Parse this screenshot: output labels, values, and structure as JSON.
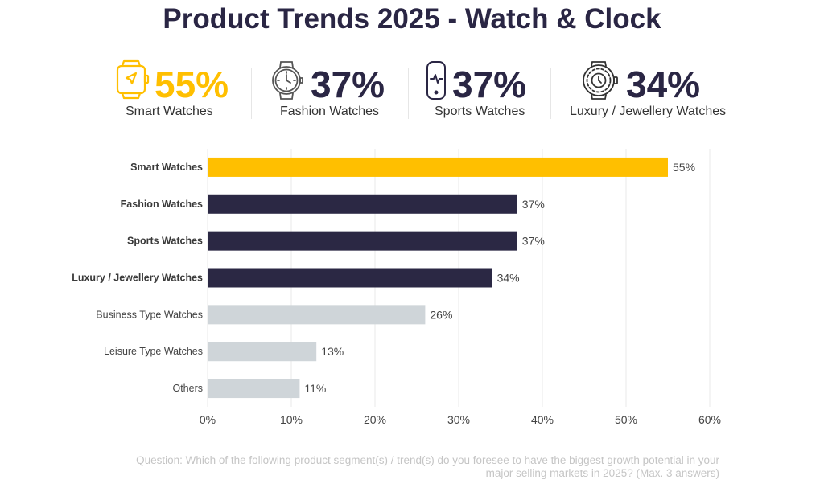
{
  "title": "Product Trends 2025 - Watch & Clock",
  "colors": {
    "highlight": "#ffbf00",
    "dark": "#2b2844",
    "muted": "#cfd5d9",
    "grid": "#e9e9e9",
    "label_text": "#444444"
  },
  "kpis": [
    {
      "value": "55%",
      "label": "Smart Watches",
      "icon": "smartwatch-icon",
      "color": "#ffbf00"
    },
    {
      "value": "37%",
      "label": "Fashion Watches",
      "icon": "analog-watch-icon",
      "color": "#2a2644"
    },
    {
      "value": "37%",
      "label": "Sports Watches",
      "icon": "fitness-band-icon",
      "color": "#2a2644"
    },
    {
      "value": "34%",
      "label": "Luxury / Jewellery Watches",
      "icon": "luxury-watch-icon",
      "color": "#2a2644"
    }
  ],
  "chart_data": {
    "type": "bar",
    "orientation": "horizontal",
    "title": "",
    "xlabel": "",
    "ylabel": "",
    "categories": [
      "Smart Watches",
      "Fashion Watches",
      "Sports Watches",
      "Luxury / Jewellery Watches",
      "Business Type Watches",
      "Leisure Type Watches",
      "Others"
    ],
    "values": [
      55,
      37,
      37,
      34,
      26,
      13,
      11
    ],
    "data_labels": [
      "55%",
      "37%",
      "37%",
      "34%",
      "26%",
      "13%",
      "11%"
    ],
    "bar_styles": [
      "highlight",
      "dark",
      "dark",
      "dark",
      "muted",
      "muted",
      "muted"
    ],
    "bold_categories": [
      true,
      true,
      true,
      true,
      false,
      false,
      false
    ],
    "xlim": [
      0,
      60
    ],
    "xticks": [
      0,
      10,
      20,
      30,
      40,
      50,
      60
    ],
    "xtick_labels": [
      "0%",
      "10%",
      "20%",
      "30%",
      "40%",
      "50%",
      "60%"
    ],
    "grid": "vertical",
    "legend": "none"
  },
  "footnote": {
    "line1": "Question: Which of the following product segment(s) / trend(s) do you foresee to have the biggest growth potential in your",
    "line2": "major selling markets in 2025? (Max. 3 answers)"
  }
}
